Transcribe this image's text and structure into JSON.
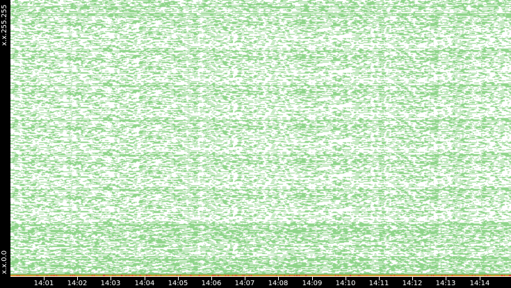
{
  "chart_data": {
    "type": "scatter",
    "title": "",
    "xlabel": "",
    "ylabel": "",
    "y_tick_labels": [
      "x.x.0.0",
      "x.x.255.255"
    ],
    "x_tick_labels": [
      "14:01",
      "14:02",
      "14:03",
      "14:04",
      "14:05",
      "14:06",
      "14:07",
      "14:08",
      "14:09",
      "14:10",
      "14:11",
      "14:12",
      "14:13",
      "14:14"
    ],
    "xlim": [
      "14:00",
      "14:15"
    ],
    "grid": false,
    "colors": {
      "points": "#8fd48a",
      "baseline": "#f08020",
      "hot": "#e83020",
      "background": "#ffffff",
      "axes": "#000000"
    }
  }
}
